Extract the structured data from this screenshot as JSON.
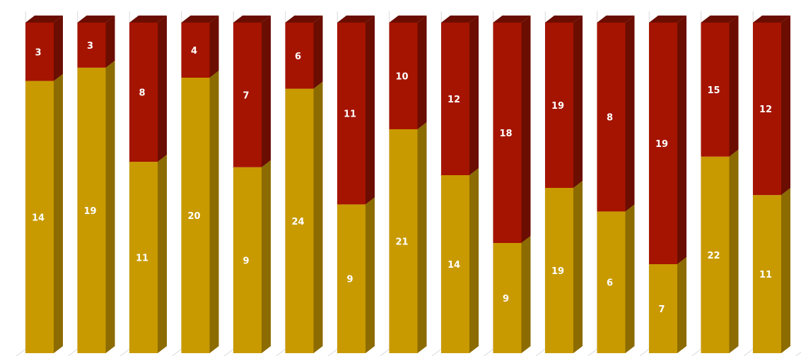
{
  "chart_data": {
    "type": "bar",
    "stacked": true,
    "percent_stacked": true,
    "style": "3d-column",
    "categories": [
      "",
      "",
      "",
      "",
      "",
      "",
      "",
      "",
      "",
      "",
      "",
      "",
      "",
      "",
      ""
    ],
    "series": [
      {
        "values": [
          14,
          19,
          11,
          20,
          9,
          24,
          9,
          21,
          14,
          9,
          19,
          6,
          7,
          22,
          11
        ]
      },
      {
        "values": [
          3,
          3,
          8,
          4,
          7,
          6,
          11,
          10,
          12,
          18,
          19,
          8,
          19,
          15,
          12
        ]
      }
    ],
    "colors": {
      "series_1_front": "#c89a00",
      "series_1_side": "#8c6b00",
      "series_2_front": "#a51400",
      "series_2_side": "#6b0d00",
      "label": "#ffffff",
      "grid": "#d8d8d8"
    },
    "grid": true,
    "legend": false,
    "title": "",
    "xlabel": "",
    "ylabel": ""
  }
}
